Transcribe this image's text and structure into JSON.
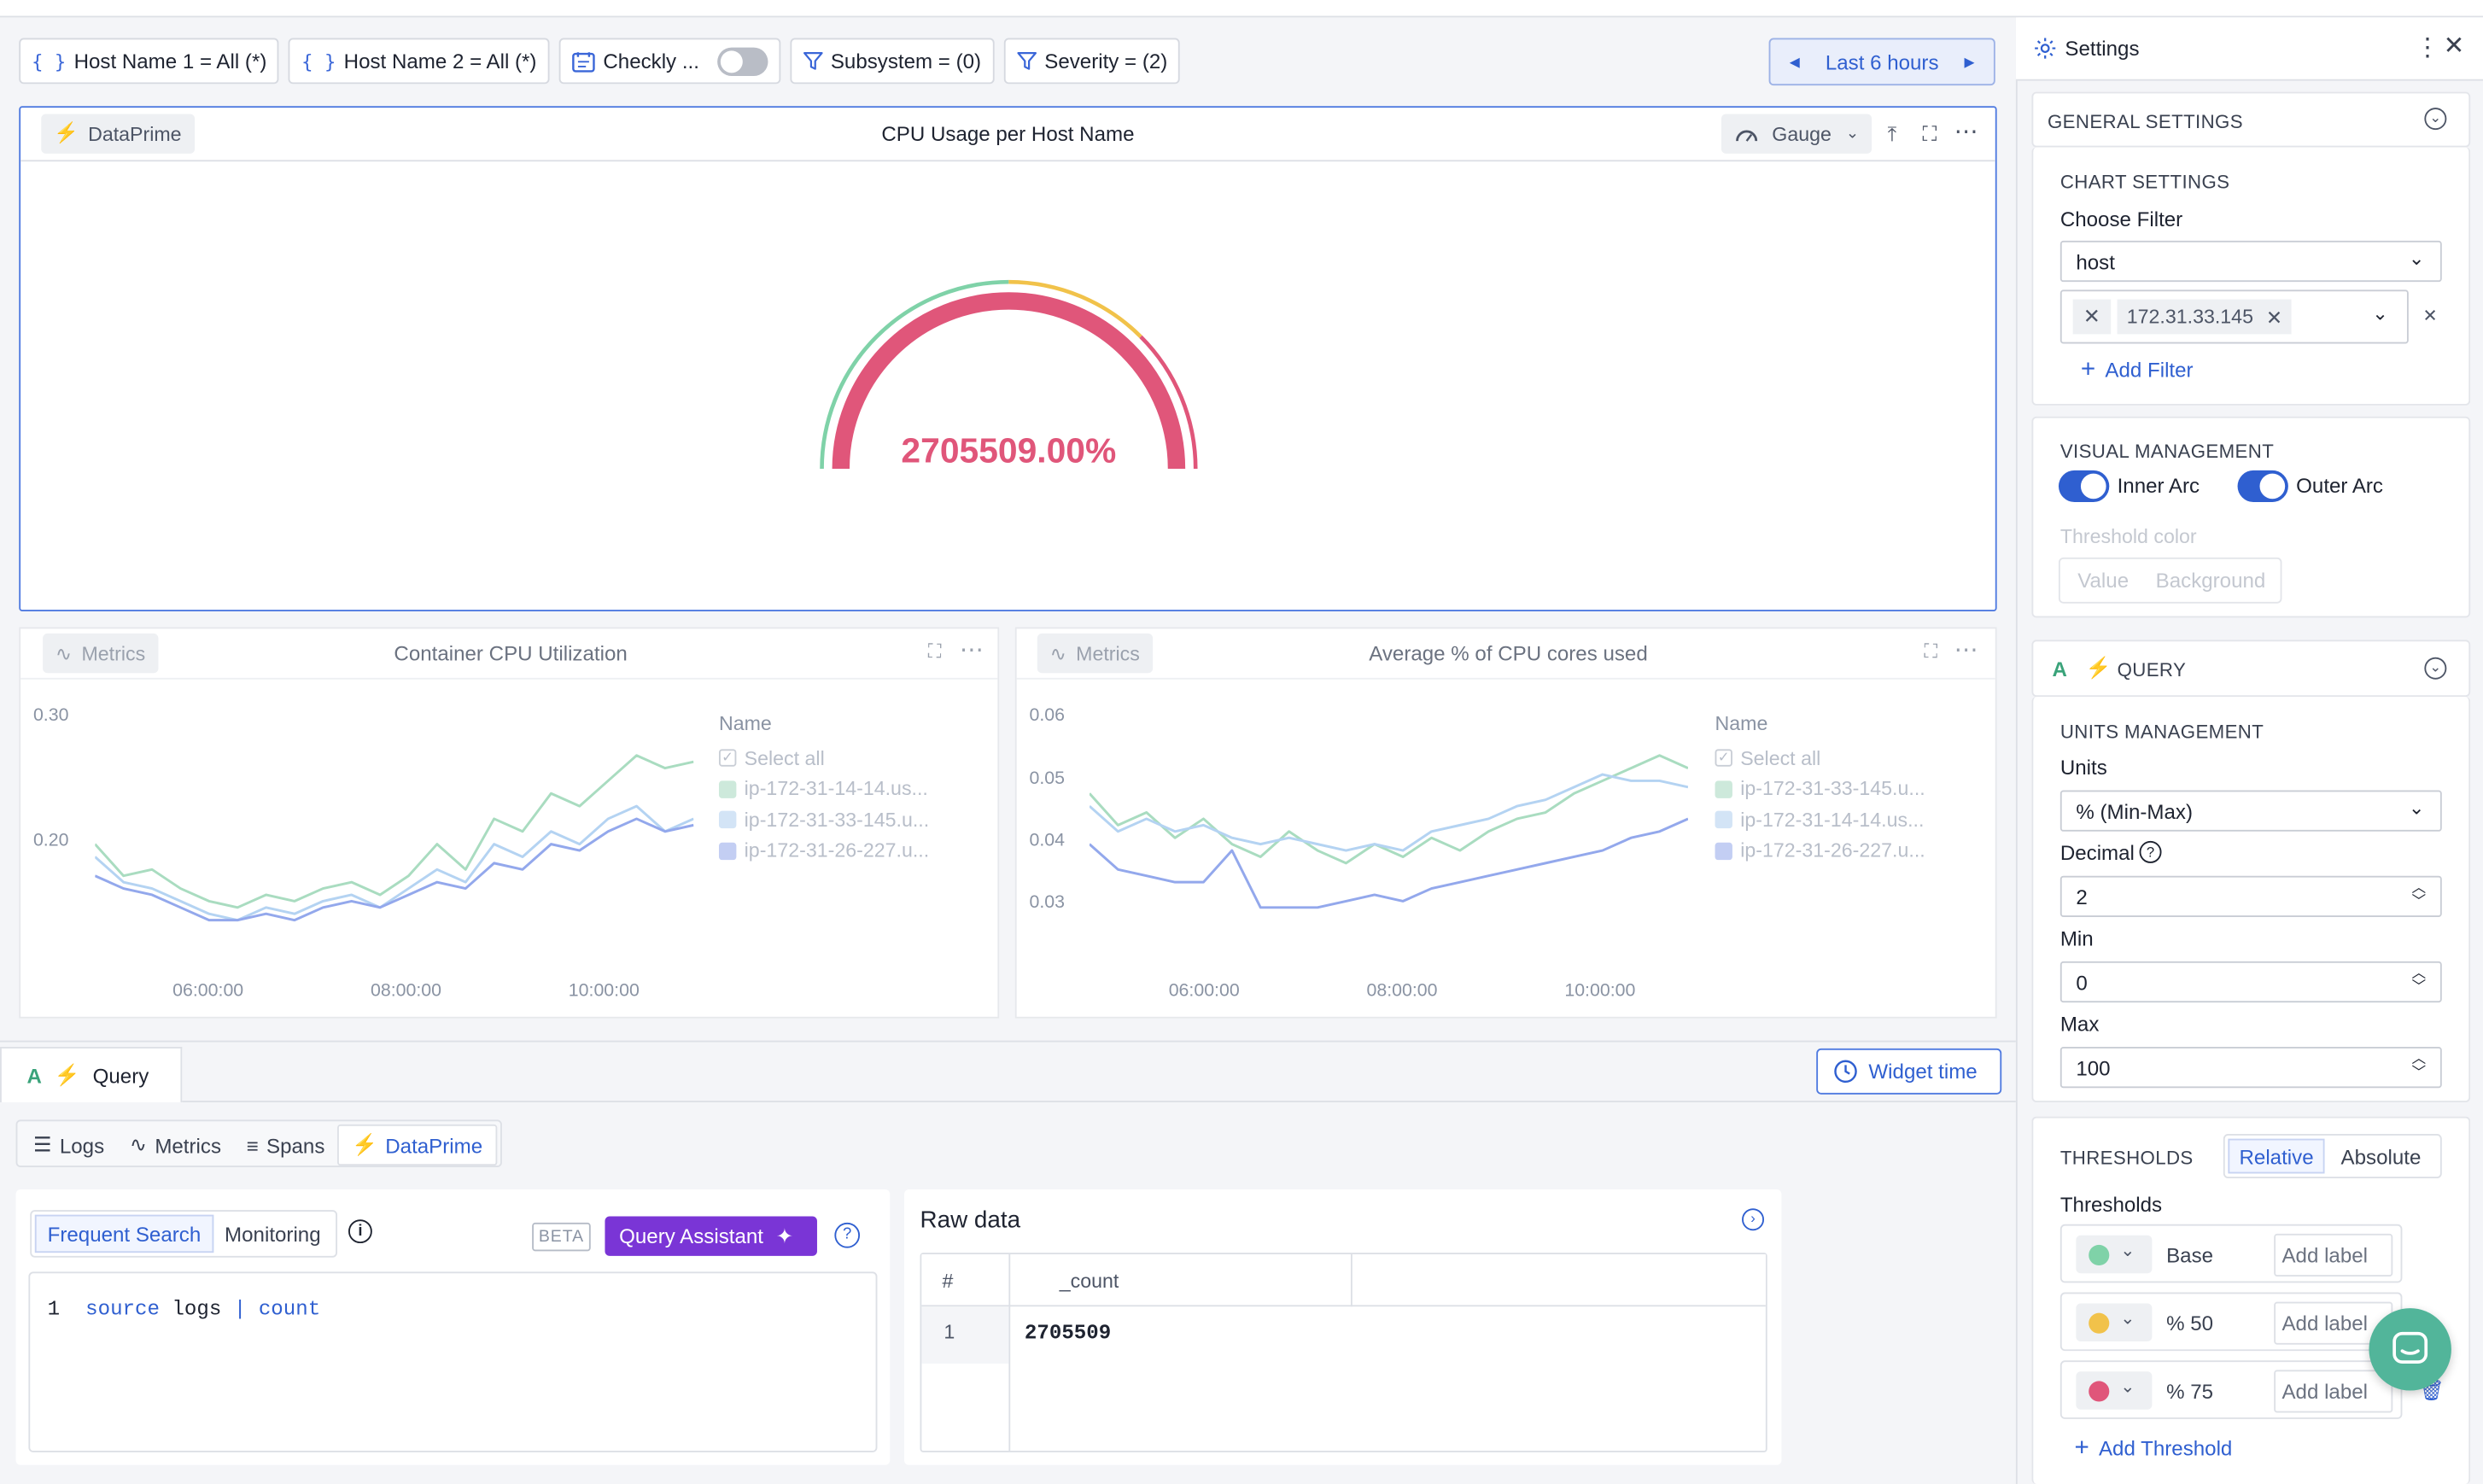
{
  "filters": [
    {
      "label": "Host Name 1 = All (*)",
      "kind": "variable"
    },
    {
      "label": "Host Name 2 = All (*)",
      "kind": "variable"
    },
    {
      "label": "Checkly ...",
      "kind": "toggle",
      "on": false
    },
    {
      "label": "Subsystem = (0)",
      "kind": "filter"
    },
    {
      "label": "Severity = (2)",
      "kind": "filter"
    }
  ],
  "time_range": "Last 6 hours",
  "main_widget": {
    "source_tag": "DataPrime",
    "title": "CPU Usage per Host Name",
    "viz_type": "Gauge",
    "value_text": "2705509.00%",
    "gauge_fill_fraction": 1.0,
    "colors": {
      "inner": "#e0567a",
      "outer_green": "#7fd2a8",
      "outer_yellow": "#f1c24a",
      "outer_red": "#e0567a"
    }
  },
  "widgets": [
    {
      "source_tag": "Metrics",
      "title": "Container CPU Utilization",
      "legend_title": "Name",
      "legend_items": [
        "Select all",
        "ip-172-31-14-14.us...",
        "ip-172-31-33-145.u...",
        "ip-172-31-26-227.u..."
      ],
      "chart_data": {
        "type": "line",
        "x_ticks": [
          "06:00:00",
          "08:00:00",
          "10:00:00"
        ],
        "y_ticks": [
          "0.30",
          "0.20"
        ],
        "ylim": [
          0.1,
          0.31
        ],
        "series": [
          {
            "name": "ip-172-31-14-14.us...",
            "color": "#a9dcc0",
            "values": [
              0.2,
              0.175,
              0.18,
              0.165,
              0.155,
              0.15,
              0.16,
              0.155,
              0.165,
              0.17,
              0.16,
              0.175,
              0.2,
              0.18,
              0.22,
              0.21,
              0.24,
              0.23,
              0.25,
              0.27,
              0.26,
              0.265
            ]
          },
          {
            "name": "ip-172-31-33-145.u...",
            "color": "#b4d3f2",
            "values": [
              0.19,
              0.17,
              0.165,
              0.155,
              0.145,
              0.14,
              0.15,
              0.145,
              0.155,
              0.16,
              0.15,
              0.165,
              0.18,
              0.17,
              0.2,
              0.19,
              0.21,
              0.2,
              0.22,
              0.23,
              0.21,
              0.22
            ]
          },
          {
            "name": "ip-172-31-26-227.u...",
            "color": "#93a8ec",
            "values": [
              0.175,
              0.165,
              0.16,
              0.15,
              0.14,
              0.14,
              0.145,
              0.14,
              0.15,
              0.155,
              0.15,
              0.16,
              0.17,
              0.165,
              0.185,
              0.18,
              0.2,
              0.195,
              0.21,
              0.22,
              0.21,
              0.215
            ]
          }
        ]
      }
    },
    {
      "source_tag": "Metrics",
      "title": "Average % of CPU cores used",
      "legend_title": "Name",
      "legend_items": [
        "Select all",
        "ip-172-31-33-145.u...",
        "ip-172-31-14-14.us...",
        "ip-172-31-26-227.u..."
      ],
      "chart_data": {
        "type": "line",
        "x_ticks": [
          "06:00:00",
          "08:00:00",
          "10:00:00"
        ],
        "y_ticks": [
          "0.06",
          "0.05",
          "0.04",
          "0.03"
        ],
        "ylim": [
          0.02,
          0.062
        ],
        "series": [
          {
            "name": "ip-172-31-33-145.u...",
            "color": "#a9dcc0",
            "values": [
              0.048,
              0.043,
              0.045,
              0.041,
              0.044,
              0.04,
              0.038,
              0.042,
              0.039,
              0.037,
              0.04,
              0.038,
              0.041,
              0.039,
              0.042,
              0.044,
              0.045,
              0.048,
              0.05,
              0.052,
              0.054,
              0.052
            ]
          },
          {
            "name": "ip-172-31-14-14.us...",
            "color": "#b4d3f2",
            "values": [
              0.046,
              0.042,
              0.044,
              0.042,
              0.043,
              0.041,
              0.04,
              0.041,
              0.04,
              0.039,
              0.04,
              0.039,
              0.042,
              0.043,
              0.044,
              0.046,
              0.047,
              0.049,
              0.051,
              0.05,
              0.05,
              0.049
            ]
          },
          {
            "name": "ip-172-31-26-227.u...",
            "color": "#93a8ec",
            "values": [
              0.04,
              0.036,
              0.035,
              0.034,
              0.034,
              0.039,
              0.03,
              0.03,
              0.03,
              0.031,
              0.032,
              0.031,
              0.033,
              0.034,
              0.035,
              0.036,
              0.037,
              0.038,
              0.039,
              0.041,
              0.042,
              0.044
            ]
          }
        ]
      }
    }
  ],
  "query_tab": {
    "label": "Query",
    "letter": "A"
  },
  "widget_time": "Widget time",
  "query_types": [
    "Logs",
    "Metrics",
    "Spans",
    "DataPrime"
  ],
  "active_query_type": "DataPrime",
  "editor": {
    "segments": [
      "Frequent Search",
      "Monitoring"
    ],
    "beta": "BETA",
    "assistant": "Query Assistant",
    "line_no": "1",
    "code": {
      "kw1": "source",
      "w1": "logs",
      "pipe": "|",
      "kw2": "count"
    }
  },
  "raw": {
    "title": "Raw data",
    "columns": [
      "#",
      "_count"
    ],
    "rows": [
      [
        "1",
        "2705509"
      ]
    ]
  },
  "settings": {
    "title": "Settings",
    "general": "GENERAL SETTINGS",
    "chart_settings": "CHART SETTINGS",
    "choose_filter": "Choose Filter",
    "filter_key": "host",
    "filter_value": "172.31.33.145",
    "add_filter": "Add Filter",
    "visual_management": "VISUAL MANAGEMENT",
    "inner_arc": "Inner Arc",
    "outer_arc": "Outer Arc",
    "threshold_color": "Threshold color",
    "tc_value": "Value",
    "tc_background": "Background",
    "query_letter": "A",
    "query_title": "QUERY",
    "units_management": "UNITS MANAGEMENT",
    "units_label": "Units",
    "units_value": "% (Min-Max)",
    "decimal_label": "Decimal",
    "decimal_value": "2",
    "min_label": "Min",
    "min_value": "0",
    "max_label": "Max",
    "max_value": "100",
    "thresholds_caps": "THRESHOLDS",
    "relative": "Relative",
    "absolute": "Absolute",
    "thresholds_label": "Thresholds",
    "thresholds": [
      {
        "label": "Base",
        "color": "#7fd2a8",
        "placeholder": "Add label"
      },
      {
        "label": "% 50",
        "color": "#f1c24a",
        "placeholder": "Add label"
      },
      {
        "label": "% 75",
        "color": "#e0567a",
        "placeholder": "Add label"
      }
    ],
    "add_threshold": "Add Threshold"
  }
}
